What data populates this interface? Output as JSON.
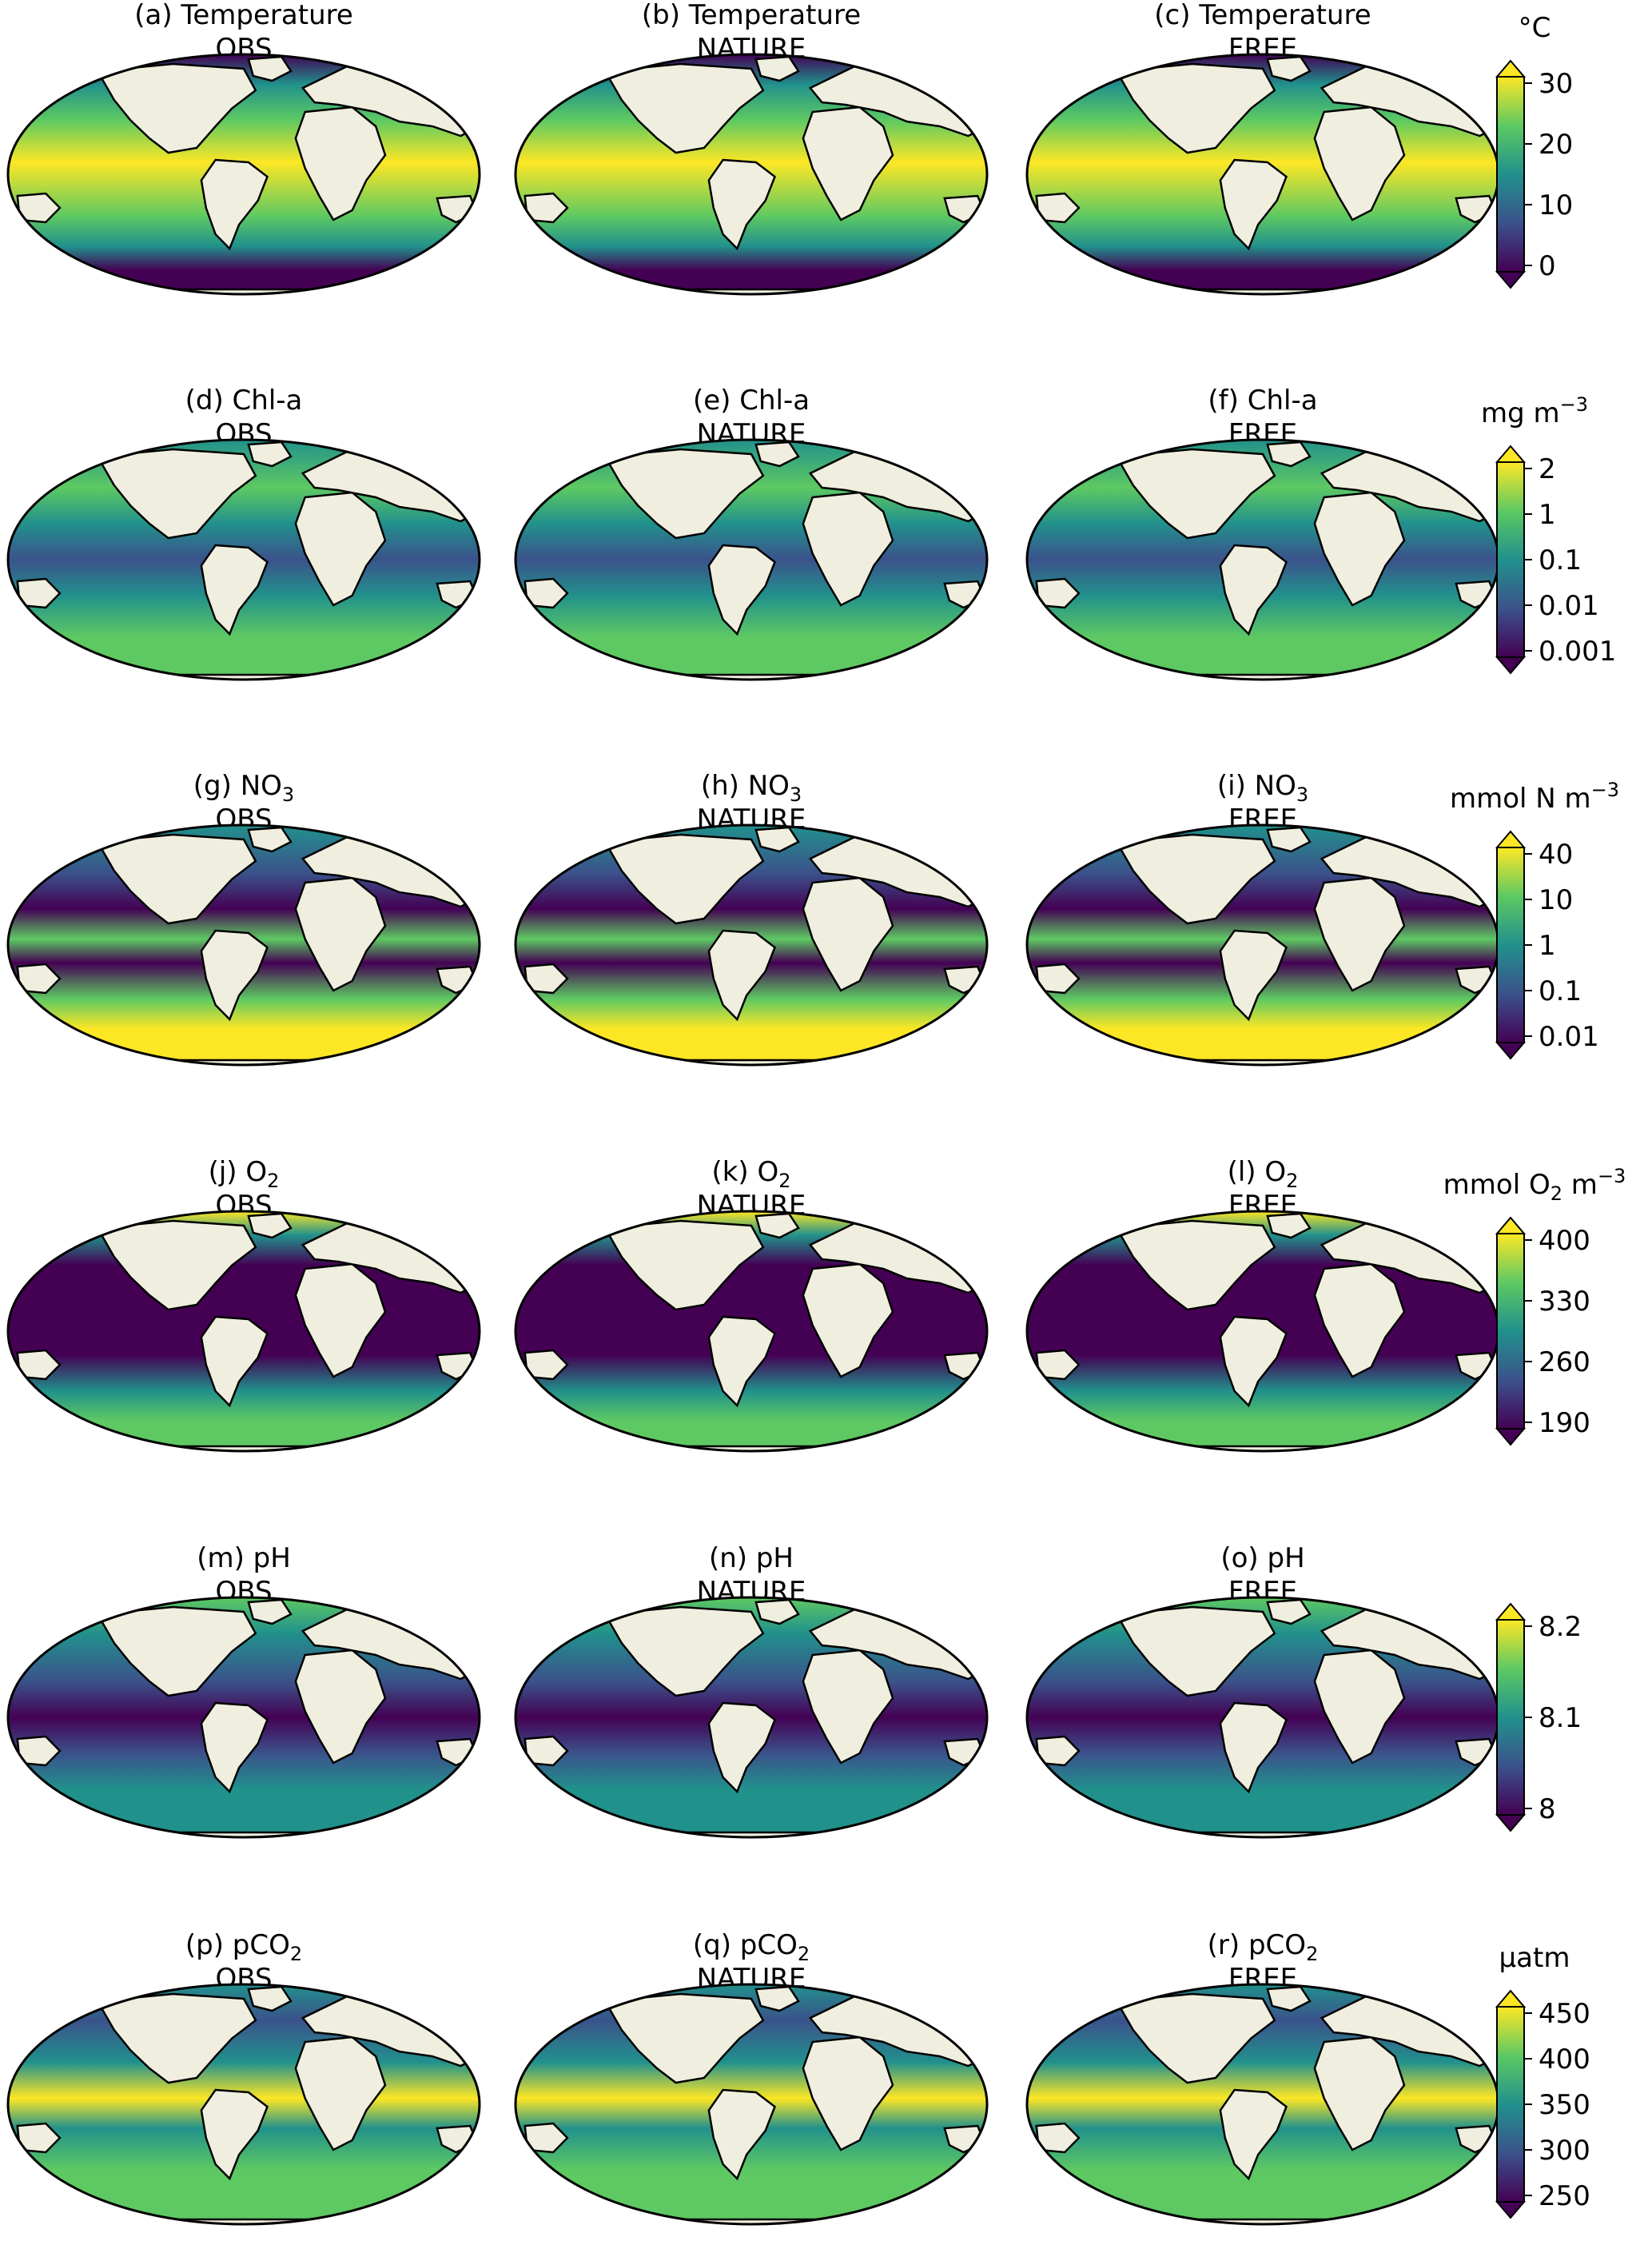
{
  "figure": {
    "columns": [
      "OBS",
      "NATURE",
      "FREE"
    ],
    "rows": [
      {
        "variable": "Temperature",
        "panels": [
          {
            "letter": "(a)",
            "title": "(a) Temperature",
            "label": "OBS"
          },
          {
            "letter": "(b)",
            "title": "(b) Temperature",
            "label": "NATURE"
          },
          {
            "letter": "(c)",
            "title": "(c) Temperature",
            "label": "FREE"
          }
        ],
        "colorbar": {
          "unit_main": "°C",
          "unit_sub": "",
          "unit_tail": "",
          "ticks": [
            "30",
            "20",
            "10",
            "0"
          ]
        }
      },
      {
        "variable": "Chl-a",
        "panels": [
          {
            "letter": "(d)",
            "title": "(d) Chl-a",
            "label": "OBS"
          },
          {
            "letter": "(e)",
            "title": "(e) Chl-a",
            "label": "NATURE"
          },
          {
            "letter": "(f)",
            "title": "(f) Chl-a",
            "label": "FREE"
          }
        ],
        "colorbar": {
          "unit_main": "mg m",
          "unit_sub": "",
          "unit_tail": "",
          "unit_sup": "−3",
          "ticks": [
            "2",
            "1",
            "0.1",
            "0.01",
            "0.001"
          ]
        }
      },
      {
        "variable": "NO3",
        "panels": [
          {
            "letter": "(g)",
            "title": "(g) NO",
            "sub": "3",
            "label": "OBS"
          },
          {
            "letter": "(h)",
            "title": "(h) NO",
            "sub": "3",
            "label": "NATURE"
          },
          {
            "letter": "(i)",
            "title": "(i) NO",
            "sub": "3",
            "label": "FREE"
          }
        ],
        "colorbar": {
          "unit_main": "mmol N m",
          "unit_sub": "",
          "unit_tail": "",
          "unit_sup": "−3",
          "ticks": [
            "40",
            "10",
            "1",
            "0.1",
            "0.01"
          ]
        }
      },
      {
        "variable": "O2",
        "panels": [
          {
            "letter": "(j)",
            "title": "(j) O",
            "sub": "2",
            "label": "OBS"
          },
          {
            "letter": "(k)",
            "title": "(k) O",
            "sub": "2",
            "label": "NATURE"
          },
          {
            "letter": "(l)",
            "title": "(l) O",
            "sub": "2",
            "label": "FREE"
          }
        ],
        "colorbar": {
          "unit_main": "mmol O",
          "unit_sub": "2",
          "unit_tail": " m",
          "unit_sup": "−3",
          "ticks": [
            "400",
            "330",
            "260",
            "190"
          ]
        }
      },
      {
        "variable": "pH",
        "panels": [
          {
            "letter": "(m)",
            "title": "(m) pH",
            "label": "OBS"
          },
          {
            "letter": "(n)",
            "title": "(n) pH",
            "label": "NATURE"
          },
          {
            "letter": "(o)",
            "title": "(o) pH",
            "label": "FREE"
          }
        ],
        "colorbar": {
          "unit_main": "",
          "unit_sub": "",
          "unit_tail": "",
          "ticks": [
            "8.2",
            "8.1",
            "8"
          ]
        }
      },
      {
        "variable": "pCO2",
        "panels": [
          {
            "letter": "(p)",
            "title": "(p) pCO",
            "sub": "2",
            "label": "OBS"
          },
          {
            "letter": "(q)",
            "title": "(q) pCO",
            "sub": "2",
            "label": "NATURE"
          },
          {
            "letter": "(r)",
            "title": "(r) pCO",
            "sub": "2",
            "label": "FREE"
          }
        ],
        "colorbar": {
          "unit_main": "µatm",
          "unit_sub": "",
          "unit_tail": "",
          "ticks": [
            "450",
            "400",
            "350",
            "300",
            "250"
          ]
        }
      }
    ]
  },
  "colors": {
    "ocean_low": "#440154",
    "ocean_mid1": "#3b528b",
    "ocean_mid2": "#21918c",
    "ocean_mid3": "#5ec962",
    "ocean_high": "#fde725",
    "land": "#f0efdf",
    "coast": "#000000"
  }
}
